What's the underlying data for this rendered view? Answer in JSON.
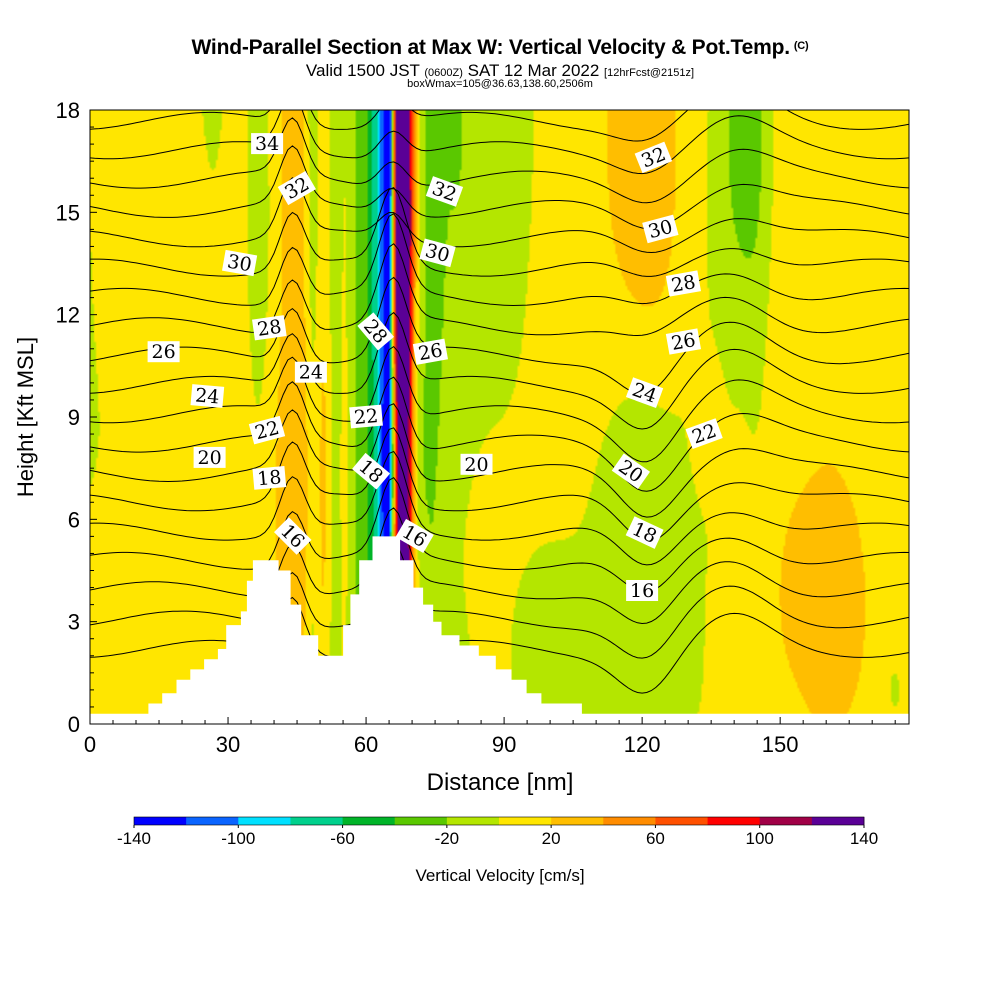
{
  "header": {
    "title": "Wind-Parallel Section at Max W: Vertical Velocity & Pot.Temp.",
    "copyright": "(C)",
    "valid_prefix": "Valid 1500 JST",
    "valid_utc": "(0600Z)",
    "valid_date": "SAT 12 Mar 2022",
    "forecast": "[12hrFcst@2151z]",
    "box_info": "boxWmax=105@36.63,138.60,2506m"
  },
  "chart_data": {
    "type": "heatmap",
    "title": "Wind-Parallel Section at Max W: Vertical Velocity & Pot.Temp.",
    "xlabel": "Distance [nm]",
    "ylabel": "Height [Kft MSL]",
    "xlim": [
      0,
      178
    ],
    "ylim": [
      0,
      18
    ],
    "xticks": [
      0,
      30,
      60,
      90,
      120,
      150
    ],
    "yticks": [
      0,
      3,
      6,
      9,
      12,
      15,
      18
    ],
    "colorbar": {
      "label": "Vertical Velocity [cm/s]",
      "levels": [
        -140,
        -120,
        -100,
        -80,
        -60,
        -40,
        -20,
        0,
        20,
        40,
        60,
        80,
        100,
        120,
        140
      ],
      "tick_labels": [
        "-140",
        "-100",
        "-60",
        "-20",
        "20",
        "60",
        "100",
        "140"
      ],
      "colors": [
        "#0000ff",
        "#0a64ff",
        "#00e0ff",
        "#00d08c",
        "#00b428",
        "#5ac800",
        "#b4e600",
        "#ffe600",
        "#ffbe00",
        "#ff8c00",
        "#ff5000",
        "#ff0000",
        "#a00046",
        "#5a0096"
      ]
    },
    "terrain_profile": [
      [
        0,
        0.3
      ],
      [
        12.7,
        0.3
      ],
      [
        12.7,
        0.6
      ],
      [
        15.7,
        0.6
      ],
      [
        15.7,
        0.9
      ],
      [
        18.8,
        0.9
      ],
      [
        18.8,
        1.3
      ],
      [
        21.8,
        1.3
      ],
      [
        21.8,
        1.6
      ],
      [
        24.8,
        1.6
      ],
      [
        24.8,
        1.9
      ],
      [
        27.8,
        1.9
      ],
      [
        27.8,
        2.2
      ],
      [
        29.6,
        2.2
      ],
      [
        29.6,
        2.9
      ],
      [
        32.8,
        2.9
      ],
      [
        32.8,
        3.3
      ],
      [
        34.1,
        3.3
      ],
      [
        34.1,
        4.2
      ],
      [
        35.4,
        4.2
      ],
      [
        35.4,
        4.8
      ],
      [
        41.0,
        4.8
      ],
      [
        41.0,
        4.5
      ],
      [
        43.6,
        4.5
      ],
      [
        43.6,
        3.5
      ],
      [
        45.9,
        3.5
      ],
      [
        45.9,
        2.6
      ],
      [
        49.6,
        2.6
      ],
      [
        49.6,
        2.0
      ],
      [
        55.0,
        2.0
      ],
      [
        55.0,
        2.9
      ],
      [
        56.6,
        2.9
      ],
      [
        56.6,
        3.8
      ],
      [
        58.5,
        3.8
      ],
      [
        58.5,
        4.8
      ],
      [
        61.4,
        4.8
      ],
      [
        61.4,
        5.5
      ],
      [
        67.4,
        5.5
      ],
      [
        67.4,
        4.8
      ],
      [
        70.3,
        4.8
      ],
      [
        70.3,
        4.0
      ],
      [
        72.4,
        4.0
      ],
      [
        72.4,
        3.5
      ],
      [
        74.6,
        3.5
      ],
      [
        74.6,
        3.0
      ],
      [
        76.4,
        3.0
      ],
      [
        76.4,
        2.6
      ],
      [
        80.3,
        2.6
      ],
      [
        80.3,
        2.3
      ],
      [
        84.5,
        2.3
      ],
      [
        84.5,
        2.0
      ],
      [
        88.2,
        2.0
      ],
      [
        88.2,
        1.6
      ],
      [
        91.6,
        1.6
      ],
      [
        91.6,
        1.3
      ],
      [
        94.9,
        1.3
      ],
      [
        94.9,
        0.9
      ],
      [
        98.1,
        0.9
      ],
      [
        98.1,
        0.6
      ],
      [
        106.9,
        0.6
      ],
      [
        106.9,
        0.3
      ],
      [
        178,
        0.3
      ]
    ],
    "w_field": [
      {
        "x": 0,
        "y": 7.5,
        "sx": 400,
        "sy": 60,
        "w": -5
      },
      {
        "x": 7.5,
        "y": 12.0,
        "sx": 12,
        "sy": 20,
        "w": 6
      },
      {
        "x": 15.5,
        "y": 5.0,
        "sx": 12,
        "sy": 8,
        "w": -4
      },
      {
        "x": 22.0,
        "y": 10.5,
        "sx": 10,
        "sy": 8,
        "w": 8
      },
      {
        "x": 27.0,
        "y": 16.5,
        "sx": 5,
        "sy": 14,
        "w": -12
      },
      {
        "x": 32.5,
        "y": 9.5,
        "sx": 10,
        "sy": 30,
        "w": 12
      },
      {
        "x": 38.5,
        "y": 15.5,
        "sx": 3,
        "sy": 10,
        "w": -14
      },
      {
        "x": 39.8,
        "y": 10.0,
        "sx": 4,
        "sy": 10,
        "w": -18
      },
      {
        "x": 42.5,
        "y": 12.0,
        "sx": 4,
        "sy": 40,
        "w": 32
      },
      {
        "x": 44.5,
        "y": 17.0,
        "sx": 1.5,
        "sy": 4,
        "w": 14
      },
      {
        "x": 45.5,
        "y": 7.0,
        "sx": 5,
        "sy": 4,
        "w": 18
      },
      {
        "x": 48.5,
        "y": 12.5,
        "sx": 1.2,
        "sy": 30,
        "w": -22
      },
      {
        "x": 50.8,
        "y": 10.0,
        "sx": 1.2,
        "sy": 30,
        "w": 16
      },
      {
        "x": 53.0,
        "y": 10.0,
        "sx": 1.3,
        "sy": 30,
        "w": -14
      },
      {
        "x": 55.5,
        "y": 10.5,
        "sx": 1.2,
        "sy": 30,
        "w": 10
      },
      {
        "x": 58.5,
        "y": 11.0,
        "sx": 2.0,
        "sy": 30,
        "w": -22
      },
      {
        "x": 62.0,
        "y": 12.5,
        "sx": 1.3,
        "sy": 30,
        "w": -55
      },
      {
        "x": 64.0,
        "y": 12.5,
        "sx": 0.9,
        "sy": 40,
        "w": -95
      },
      {
        "x": 64.8,
        "y": 13.5,
        "sx": 0.45,
        "sy": 22,
        "w": -85
      },
      {
        "x": 65.3,
        "y": 17.5,
        "sx": 0.4,
        "sy": 4,
        "w": -45
      },
      {
        "x": 66.1,
        "y": 7.3,
        "sx": 1.4,
        "sy": 2,
        "w": -40
      },
      {
        "x": 67.2,
        "y": 14.0,
        "sx": 0.9,
        "sy": 30,
        "w": 140
      },
      {
        "x": 68.6,
        "y": 13.0,
        "sx": 0.9,
        "sy": 30,
        "w": 120
      },
      {
        "x": 69.9,
        "y": 12.5,
        "sx": 1.0,
        "sy": 28,
        "w": 45
      },
      {
        "x": 70.5,
        "y": 7.0,
        "sx": 2,
        "sy": 3,
        "w": -25
      },
      {
        "x": 74.5,
        "y": 14.0,
        "sx": 1.5,
        "sy": 20,
        "w": -22
      },
      {
        "x": 79.0,
        "y": 11.0,
        "sx": 3,
        "sy": 25,
        "w": -10
      },
      {
        "x": 84.0,
        "y": 17.5,
        "sx": 9,
        "sy": 6,
        "w": -14
      },
      {
        "x": 100.0,
        "y": 16.5,
        "sx": 12,
        "sy": 8,
        "w": 6
      },
      {
        "x": 119.5,
        "y": 16.0,
        "sx": 8,
        "sy": 10,
        "w": 28
      },
      {
        "x": 123.0,
        "y": 14.0,
        "sx": 5,
        "sy": 6,
        "w": 10
      },
      {
        "x": 142.0,
        "y": 17.0,
        "sx": 4,
        "sy": 4,
        "w": -34
      },
      {
        "x": 145.5,
        "y": 15.0,
        "sx": 2.5,
        "sy": 10,
        "w": -12
      },
      {
        "x": 146.0,
        "y": 11.0,
        "sx": 6,
        "sy": 6,
        "w": 7
      },
      {
        "x": 125.5,
        "y": 9.0,
        "sx": 18,
        "sy": 7,
        "w": -9
      },
      {
        "x": 120.0,
        "y": 6.8,
        "sx": 6,
        "sy": 3.5,
        "w": -32
      },
      {
        "x": 134.0,
        "y": 8.8,
        "sx": 2,
        "sy": 1.2,
        "w": 18
      },
      {
        "x": 104.0,
        "y": 8.5,
        "sx": 40,
        "sy": 12,
        "w": 7
      },
      {
        "x": 118.0,
        "y": 3.2,
        "sx": 30,
        "sy": 2,
        "w": -4
      },
      {
        "x": 161.0,
        "y": 10.0,
        "sx": 14,
        "sy": 60,
        "w": 22
      },
      {
        "x": 160.0,
        "y": 3.5,
        "sx": 20,
        "sy": 2,
        "w": 10
      },
      {
        "x": 11.0,
        "y": 3.0,
        "sx": 10,
        "sy": 2,
        "w": 12
      },
      {
        "x": 26.0,
        "y": 5.5,
        "sx": 6,
        "sy": 2,
        "w": 10
      },
      {
        "x": 78.0,
        "y": 4.5,
        "sx": 8,
        "sy": 3,
        "w": 10
      },
      {
        "x": 173.0,
        "y": 4.0,
        "sx": 3,
        "sy": 3,
        "w": -12
      },
      {
        "x": 175.0,
        "y": 1.0,
        "sx": 2,
        "sy": 1,
        "w": -8
      }
    ],
    "theta_contours": [
      16,
      17,
      18,
      19,
      20,
      21,
      22,
      23,
      24,
      25,
      26,
      27,
      28,
      29,
      30,
      31,
      32,
      33,
      34,
      35,
      36
    ],
    "contour_labels": [
      {
        "text": "34",
        "x": 38.5,
        "y": 17.0,
        "rot": 0
      },
      {
        "text": "32",
        "x": 45.0,
        "y": 15.7,
        "rot": -30
      },
      {
        "text": "32",
        "x": 77.0,
        "y": 15.6,
        "rot": 20
      },
      {
        "text": "32",
        "x": 122.5,
        "y": 16.6,
        "rot": -22
      },
      {
        "text": "30",
        "x": 32.5,
        "y": 13.5,
        "rot": 10
      },
      {
        "text": "30",
        "x": 75.5,
        "y": 13.8,
        "rot": 15
      },
      {
        "text": "30",
        "x": 124.0,
        "y": 14.5,
        "rot": -15
      },
      {
        "text": "28",
        "x": 39.0,
        "y": 11.6,
        "rot": -8
      },
      {
        "text": "28",
        "x": 62.0,
        "y": 11.5,
        "rot": 50
      },
      {
        "text": "28",
        "x": 129.0,
        "y": 12.9,
        "rot": -10
      },
      {
        "text": "26",
        "x": 16.0,
        "y": 10.9,
        "rot": 0
      },
      {
        "text": "26",
        "x": 74.0,
        "y": 10.9,
        "rot": -10
      },
      {
        "text": "26",
        "x": 129.0,
        "y": 11.2,
        "rot": -10
      },
      {
        "text": "24",
        "x": 25.5,
        "y": 9.6,
        "rot": 5
      },
      {
        "text": "24",
        "x": 48.0,
        "y": 10.3,
        "rot": 0
      },
      {
        "text": "24",
        "x": 120.5,
        "y": 9.7,
        "rot": 20
      },
      {
        "text": "22",
        "x": 38.5,
        "y": 8.6,
        "rot": -15
      },
      {
        "text": "22",
        "x": 60.0,
        "y": 9.0,
        "rot": -5
      },
      {
        "text": "22",
        "x": 133.5,
        "y": 8.5,
        "rot": -20
      },
      {
        "text": "20",
        "x": 26.0,
        "y": 7.8,
        "rot": 0
      },
      {
        "text": "20",
        "x": 84.0,
        "y": 7.6,
        "rot": 0
      },
      {
        "text": "20",
        "x": 117.5,
        "y": 7.4,
        "rot": 35
      },
      {
        "text": "18",
        "x": 39.0,
        "y": 7.2,
        "rot": -5
      },
      {
        "text": "18",
        "x": 61.0,
        "y": 7.4,
        "rot": 40
      },
      {
        "text": "18",
        "x": 120.5,
        "y": 5.6,
        "rot": 25
      },
      {
        "text": "16",
        "x": 44.0,
        "y": 5.5,
        "rot": 45
      },
      {
        "text": "16",
        "x": 70.5,
        "y": 5.5,
        "rot": 30
      },
      {
        "text": "16",
        "x": 120.0,
        "y": 3.9,
        "rot": 0
      }
    ]
  }
}
